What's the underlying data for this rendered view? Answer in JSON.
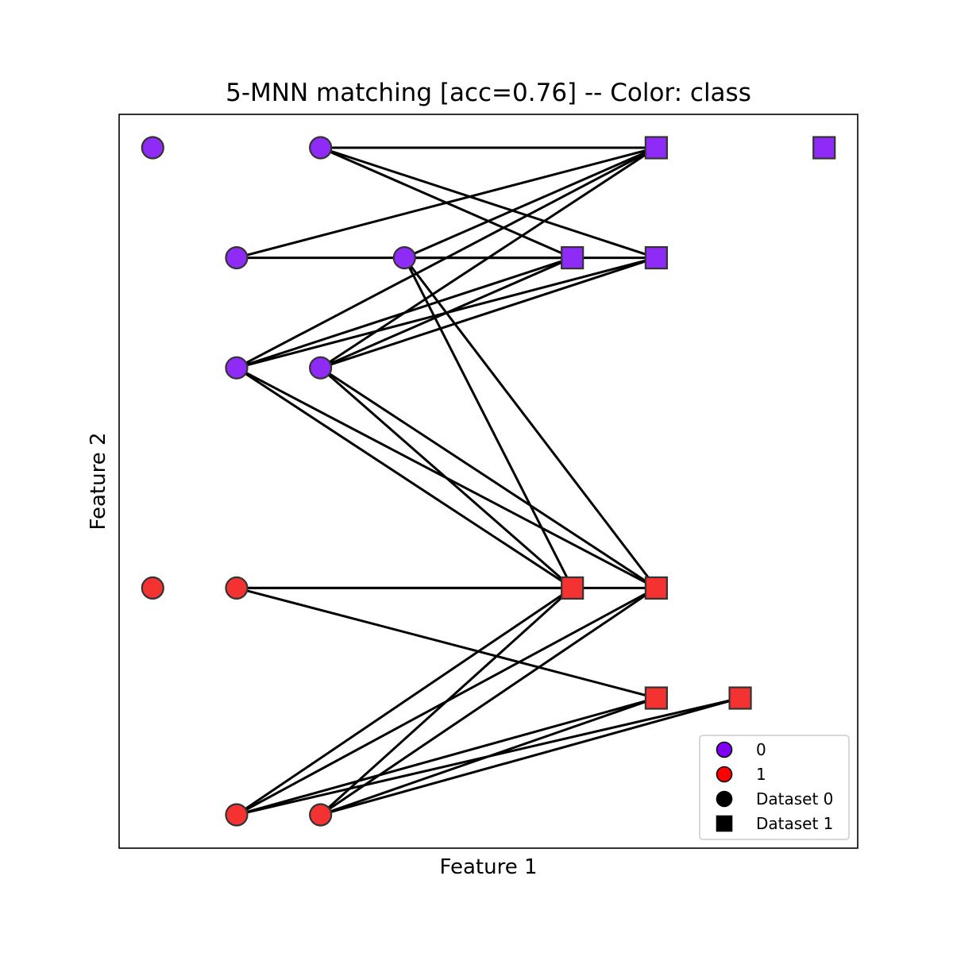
{
  "chart_data": {
    "type": "scatter",
    "title": "5-MNN matching [acc=0.76] -- Color: class",
    "xlabel": "Feature 1",
    "ylabel": "Feature 2",
    "xlim": [
      0,
      8.8
    ],
    "ylim": [
      0,
      8.8
    ],
    "grid": false,
    "ticks_visible": false,
    "legend_position": "lower-right",
    "class_colors": {
      "0": "#8f2bf6",
      "1": "#f53232"
    },
    "legend": [
      {
        "label": "0",
        "marker": "circle",
        "color": "#7f00ff"
      },
      {
        "label": "1",
        "marker": "circle",
        "color": "#ff0000"
      },
      {
        "label": "Dataset 0",
        "marker": "circle",
        "color": "#000000"
      },
      {
        "label": "Dataset 1",
        "marker": "square",
        "color": "#000000"
      }
    ],
    "dataset0": [
      {
        "x": 0.4,
        "y": 8.4,
        "class": 0
      },
      {
        "x": 2.4,
        "y": 8.4,
        "class": 0
      },
      {
        "x": 1.4,
        "y": 7.08,
        "class": 0
      },
      {
        "x": 3.4,
        "y": 7.08,
        "class": 0
      },
      {
        "x": 1.4,
        "y": 5.76,
        "class": 0
      },
      {
        "x": 2.4,
        "y": 5.76,
        "class": 0
      },
      {
        "x": 0.4,
        "y": 3.12,
        "class": 1
      },
      {
        "x": 1.4,
        "y": 3.12,
        "class": 1
      },
      {
        "x": 1.4,
        "y": 0.4,
        "class": 1
      },
      {
        "x": 2.4,
        "y": 0.4,
        "class": 1
      }
    ],
    "dataset1": [
      {
        "x": 6.4,
        "y": 8.4,
        "class": 0
      },
      {
        "x": 8.4,
        "y": 8.4,
        "class": 0
      },
      {
        "x": 5.4,
        "y": 7.08,
        "class": 0
      },
      {
        "x": 6.4,
        "y": 7.08,
        "class": 0
      },
      {
        "x": 5.4,
        "y": 3.12,
        "class": 1
      },
      {
        "x": 6.4,
        "y": 3.12,
        "class": 1
      },
      {
        "x": 6.4,
        "y": 1.8,
        "class": 1
      },
      {
        "x": 7.4,
        "y": 1.8,
        "class": 1
      }
    ],
    "matches": [
      [
        1,
        0
      ],
      [
        1,
        2
      ],
      [
        1,
        3
      ],
      [
        2,
        0
      ],
      [
        2,
        2
      ],
      [
        3,
        0
      ],
      [
        3,
        3
      ],
      [
        3,
        4
      ],
      [
        3,
        5
      ],
      [
        4,
        0
      ],
      [
        4,
        2
      ],
      [
        4,
        3
      ],
      [
        4,
        4
      ],
      [
        4,
        5
      ],
      [
        5,
        0
      ],
      [
        5,
        2
      ],
      [
        5,
        3
      ],
      [
        5,
        4
      ],
      [
        5,
        5
      ],
      [
        7,
        4
      ],
      [
        7,
        5
      ],
      [
        7,
        6
      ],
      [
        8,
        4
      ],
      [
        8,
        5
      ],
      [
        8,
        6
      ],
      [
        8,
        7
      ],
      [
        9,
        4
      ],
      [
        9,
        5
      ],
      [
        9,
        6
      ],
      [
        9,
        7
      ]
    ]
  }
}
